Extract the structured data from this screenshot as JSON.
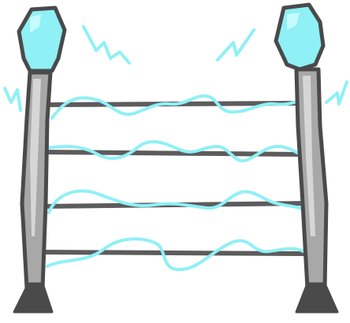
{
  "illustration": {
    "subject": "electric-fence",
    "colors": {
      "outline": "#4a4a4a",
      "pole_fill": "#a8a8a8",
      "pole_highlight": "#d6d6d6",
      "bulb_fill": "#8ff0f6",
      "bulb_highlight": "#c4fbff",
      "wire": "#5c5c5c",
      "current": "#8ff0f6",
      "background": "#ffffff"
    },
    "posts": [
      {
        "id": "left",
        "icon": "lamp-post-icon",
        "bulb_icon": "glowing-bulb-icon"
      },
      {
        "id": "right",
        "icon": "lamp-post-icon",
        "bulb_icon": "glowing-bulb-icon"
      }
    ],
    "wire_count": 4,
    "spark_count": 4,
    "spark_icon": "lightning-spark-icon"
  }
}
